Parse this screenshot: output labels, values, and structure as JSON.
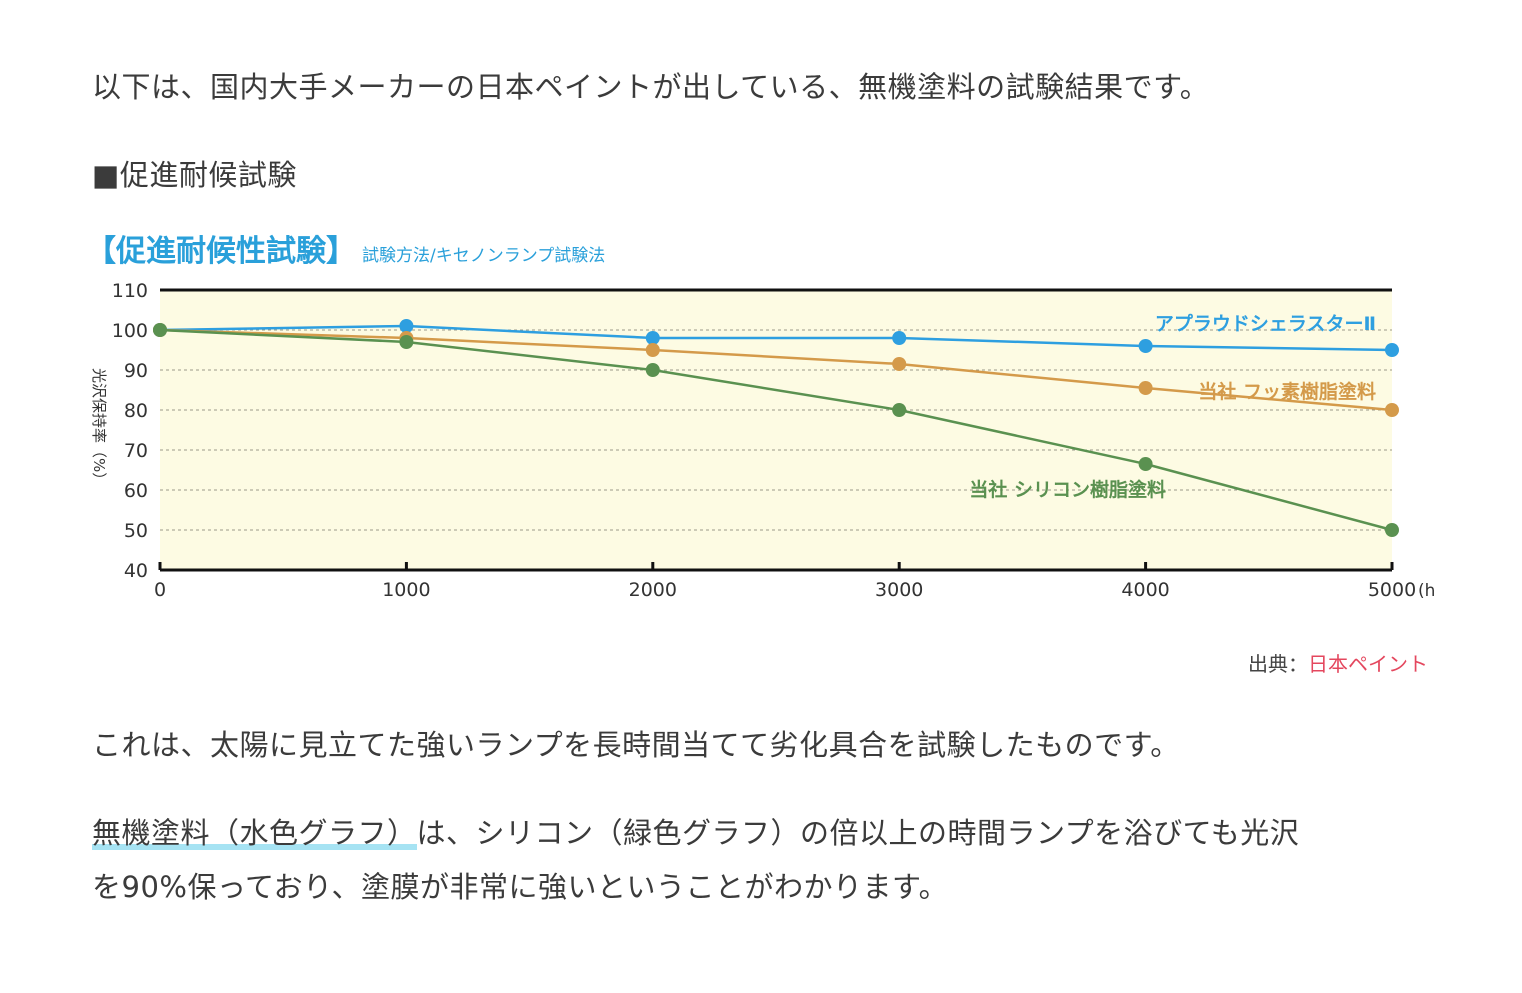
{
  "article": {
    "intro": "以下は、国内大手メーカーの日本ペイントが出している、無機塗料の試験結果です。",
    "heading": "■促進耐候試験",
    "source_label": "出典：",
    "source_link": "日本ペイント",
    "p2": "これは、太陽に見立てた強いランプを長時間当てて劣化具合を試験したものです。",
    "p3_highlight": "無機塗料（水色グラフ）",
    "p3_rest": "は、シリコン（緑色グラフ）の倍以上の時間ランプを浴びても光沢",
    "p3_line2": "を90%保っており、塗膜が非常に強いということがわかります。"
  },
  "chart_data": {
    "type": "line",
    "title": "【促進耐候性試験】",
    "subtitle": "試験方法/キセノンランプ試験法",
    "ylabel": "光沢保持率（%）",
    "xlabel": "",
    "x_unit": "(h)",
    "x": [
      0,
      1000,
      2000,
      3000,
      4000,
      5000
    ],
    "ylim": [
      40,
      110
    ],
    "xlim": [
      0,
      5000
    ],
    "y_ticks": [
      40,
      50,
      60,
      70,
      80,
      90,
      100,
      110
    ],
    "grid": true,
    "plot_background": "#fdfbe3",
    "series": [
      {
        "name": "アプラウドシェラスターⅡ",
        "color": "#2e9fe0",
        "values": [
          100,
          101,
          98,
          98,
          96,
          95
        ]
      },
      {
        "name": "当社 フッ素樹脂塗料",
        "color": "#d49a4a",
        "values": [
          100,
          98,
          95,
          91.5,
          85.5,
          80
        ]
      },
      {
        "name": "当社 シリコン樹脂塗料",
        "color": "#5a9150",
        "values": [
          100,
          97,
          90,
          80,
          66.5,
          50
        ]
      }
    ]
  },
  "colors": {
    "title_blue": "#2aa0da",
    "link": "#e4475e",
    "highlight": "#a6e3f3"
  }
}
